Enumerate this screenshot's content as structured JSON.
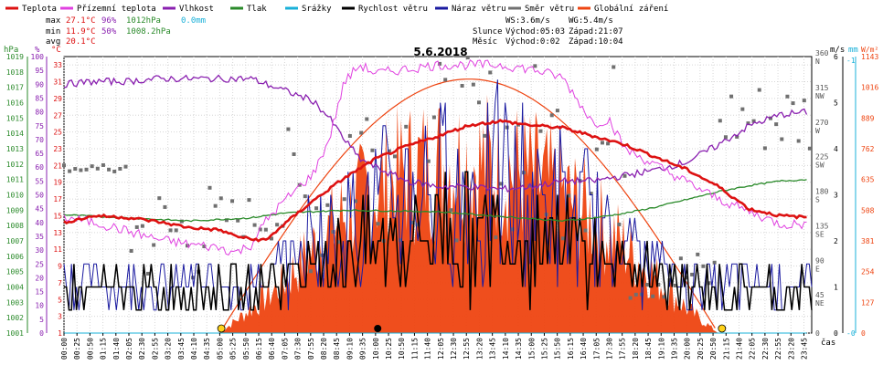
{
  "legend": [
    {
      "label": "Teplota",
      "color": "#dd1111"
    },
    {
      "label": "Přízemní teplota",
      "color": "#e040e0"
    },
    {
      "label": "Vlhkost",
      "color": "#8a20b0"
    },
    {
      "label": "Tlak",
      "color": "#2a8a2a"
    },
    {
      "label": "Srážky",
      "color": "#19b0d8"
    },
    {
      "label": "Rychlost větru",
      "color": "#000000"
    },
    {
      "label": "Náraz větru",
      "color": "#1a1aa0"
    },
    {
      "label": "Směr větru",
      "color": "#707070"
    },
    {
      "label": "Globální záření",
      "color": "#ee4411"
    }
  ],
  "stats": {
    "max": {
      "label": "max",
      "temp": "27.1°C",
      "hum": "96%",
      "press": "1012hPa",
      "rain": "0.0mm"
    },
    "min": {
      "label": "min",
      "temp": "11.9°C",
      "hum": "50%",
      "press": "1008.2hPa"
    },
    "avg": {
      "label": "avg",
      "temp": "20.1°C"
    }
  },
  "astro": {
    "ws": "WS:3.6m/s",
    "wg": "WG:5.4m/s",
    "sun_label": "Slunce",
    "sun_rise": "Východ:05:03",
    "sun_set": "Západ:21:07",
    "moon_label": "Měsíc",
    "moon_rise": "Východ:0:02",
    "moon_set": "Západ:10:04"
  },
  "chart_data": {
    "type": "line",
    "title": "5.6.2018",
    "xlabel": "čas",
    "units": {
      "pressure": "hPa",
      "humidity": "%",
      "temperature": "°C",
      "wind": "m/s",
      "rain": "mm",
      "direction": "°",
      "radiation": "W/m²"
    },
    "x_ticks": [
      "00:00",
      "00:25",
      "00:50",
      "01:15",
      "01:40",
      "02:05",
      "02:30",
      "02:55",
      "03:20",
      "03:45",
      "04:10",
      "04:35",
      "05:00",
      "05:25",
      "05:50",
      "06:15",
      "06:40",
      "07:05",
      "07:30",
      "07:55",
      "08:20",
      "08:45",
      "09:10",
      "09:35",
      "10:00",
      "10:25",
      "10:50",
      "11:15",
      "11:40",
      "12:05",
      "12:30",
      "12:55",
      "13:20",
      "13:45",
      "14:10",
      "14:35",
      "15:00",
      "15:25",
      "15:50",
      "16:15",
      "16:40",
      "17:05",
      "17:30",
      "17:55",
      "18:20",
      "18:45",
      "19:10",
      "19:35",
      "20:00",
      "20:25",
      "20:50",
      "21:15",
      "21:40",
      "22:05",
      "22:30",
      "22:55",
      "23:20",
      "23:45"
    ],
    "axes": {
      "pressure": {
        "ticks": [
          "1001",
          "1002",
          "1003",
          "1004",
          "1005",
          "1006",
          "1007",
          "1008",
          "1009",
          "1010",
          "1011",
          "1012",
          "1013",
          "1014",
          "1015",
          "1016",
          "1017",
          "1018",
          "1019"
        ],
        "ylim": [
          1001,
          1019
        ]
      },
      "humidity": {
        "ticks": [
          "0",
          "5",
          "10",
          "15",
          "20",
          "25",
          "30",
          "35",
          "40",
          "45",
          "50",
          "55",
          "60",
          "65",
          "70",
          "75",
          "80",
          "85",
          "90",
          "95",
          "100"
        ],
        "ylim": [
          0,
          100
        ]
      },
      "temperature": {
        "ticks": [
          "1",
          "3",
          "5",
          "7",
          "9",
          "11",
          "13",
          "15",
          "17",
          "19",
          "21",
          "23",
          "25",
          "27",
          "29",
          "31",
          "33"
        ],
        "ylim": [
          1,
          34
        ]
      },
      "direction": {
        "ticks": [
          "0",
          "45\nNE",
          "90\nE",
          "135\nSE",
          "180\nS",
          "225\nSW",
          "270\nW",
          "315\nNW",
          "360\nN"
        ],
        "ylim": [
          0,
          360
        ]
      },
      "wind": {
        "ticks": [
          "0",
          "1",
          "2",
          "3",
          "4",
          "5",
          "6"
        ],
        "ylim": [
          0,
          6
        ]
      },
      "rain": {
        "ticks": [
          "-0",
          "-1"
        ],
        "ylim": [
          0,
          1
        ]
      },
      "radiation": {
        "ticks": [
          "0",
          "127",
          "254",
          "381",
          "508",
          "635",
          "762",
          "889",
          "1016",
          "1143"
        ],
        "ylim": [
          0,
          1143
        ]
      }
    },
    "series": [
      {
        "name": "Teplota",
        "axis": "temperature",
        "points": [
          [
            0,
            14.2
          ],
          [
            1,
            15.0
          ],
          [
            2,
            14.8
          ],
          [
            3,
            14.3
          ],
          [
            4,
            13.6
          ],
          [
            5,
            13.3
          ],
          [
            5.5,
            12.6
          ],
          [
            6,
            12.2
          ],
          [
            6.5,
            12.1
          ],
          [
            7,
            13.8
          ],
          [
            8,
            16.8
          ],
          [
            9,
            19.5
          ],
          [
            10,
            21.8
          ],
          [
            11,
            23.3
          ],
          [
            12,
            24.5
          ],
          [
            13,
            25.8
          ],
          [
            14,
            26.3
          ],
          [
            15,
            25.8
          ],
          [
            16,
            25.5
          ],
          [
            17,
            24.5
          ],
          [
            18,
            23.5
          ],
          [
            19,
            22.0
          ],
          [
            20,
            20.5
          ],
          [
            21,
            18.5
          ],
          [
            22,
            15.8
          ],
          [
            23,
            15.0
          ],
          [
            23.9,
            14.8
          ]
        ]
      },
      {
        "name": "Přízemní teplota",
        "axis": "temperature",
        "points": [
          [
            0,
            14.8
          ],
          [
            1,
            14.2
          ],
          [
            2,
            13.2
          ],
          [
            3,
            12.2
          ],
          [
            4,
            11.6
          ],
          [
            5,
            11.2
          ],
          [
            5.5,
            10.6
          ],
          [
            6,
            11.5
          ],
          [
            6.5,
            14.5
          ],
          [
            7,
            16.5
          ],
          [
            8,
            20.0
          ],
          [
            8.5,
            24.0
          ],
          [
            9,
            31.0
          ],
          [
            9.5,
            33.0
          ],
          [
            10,
            32.0
          ],
          [
            11,
            32.5
          ],
          [
            12,
            33.0
          ],
          [
            13,
            33.0
          ],
          [
            14,
            33.0
          ],
          [
            15,
            32.5
          ],
          [
            16,
            31.5
          ],
          [
            17,
            26.0
          ],
          [
            17.5,
            26.5
          ],
          [
            18,
            23.0
          ],
          [
            19,
            21.0
          ],
          [
            20,
            19.0
          ],
          [
            21,
            17.0
          ],
          [
            22,
            15.5
          ],
          [
            23,
            14.0
          ],
          [
            23.9,
            14.0
          ]
        ]
      },
      {
        "name": "Vlhkost",
        "axis": "humidity",
        "points": [
          [
            0,
            90
          ],
          [
            1,
            91
          ],
          [
            2,
            91
          ],
          [
            3,
            92
          ],
          [
            4,
            92
          ],
          [
            5,
            92
          ],
          [
            6,
            92
          ],
          [
            7,
            88
          ],
          [
            8,
            84
          ],
          [
            8.5,
            78
          ],
          [
            9,
            70
          ],
          [
            9.5,
            63
          ],
          [
            10,
            60
          ],
          [
            11,
            55
          ],
          [
            12,
            53
          ],
          [
            13,
            53
          ],
          [
            14,
            52
          ],
          [
            15,
            53
          ],
          [
            16,
            55
          ],
          [
            17,
            55
          ],
          [
            18,
            57
          ],
          [
            19,
            59
          ],
          [
            20,
            62
          ],
          [
            21,
            68
          ],
          [
            22,
            75
          ],
          [
            23,
            79
          ],
          [
            23.9,
            80
          ]
        ]
      },
      {
        "name": "Tlak",
        "axis": "pressure",
        "points": [
          [
            0,
            1008.7
          ],
          [
            2,
            1008.5
          ],
          [
            4,
            1008.3
          ],
          [
            6,
            1008.5
          ],
          [
            7,
            1008.8
          ],
          [
            9,
            1009.0
          ],
          [
            12,
            1008.9
          ],
          [
            14,
            1008.6
          ],
          [
            16,
            1008.3
          ],
          [
            17,
            1008.5
          ],
          [
            18,
            1008.8
          ],
          [
            19,
            1009.2
          ],
          [
            20,
            1009.7
          ],
          [
            21,
            1010.2
          ],
          [
            22,
            1010.6
          ],
          [
            23,
            1010.9
          ],
          [
            23.9,
            1011.0
          ]
        ]
      },
      {
        "name": "Srážky",
        "axis": "rain",
        "points": [
          [
            0,
            0
          ],
          [
            23.9,
            0
          ]
        ]
      },
      {
        "name": "Globální záření",
        "axis": "radiation",
        "points": [
          [
            5,
            0
          ],
          [
            7,
            300
          ],
          [
            8,
            520
          ],
          [
            9,
            720
          ],
          [
            10,
            880
          ],
          [
            11,
            980
          ],
          [
            12,
            1040
          ],
          [
            13,
            1050
          ],
          [
            14,
            1020
          ],
          [
            15,
            950
          ],
          [
            16,
            840
          ],
          [
            17,
            700
          ],
          [
            18,
            530
          ],
          [
            19,
            340
          ],
          [
            20,
            150
          ],
          [
            21,
            0
          ]
        ]
      }
    ]
  }
}
